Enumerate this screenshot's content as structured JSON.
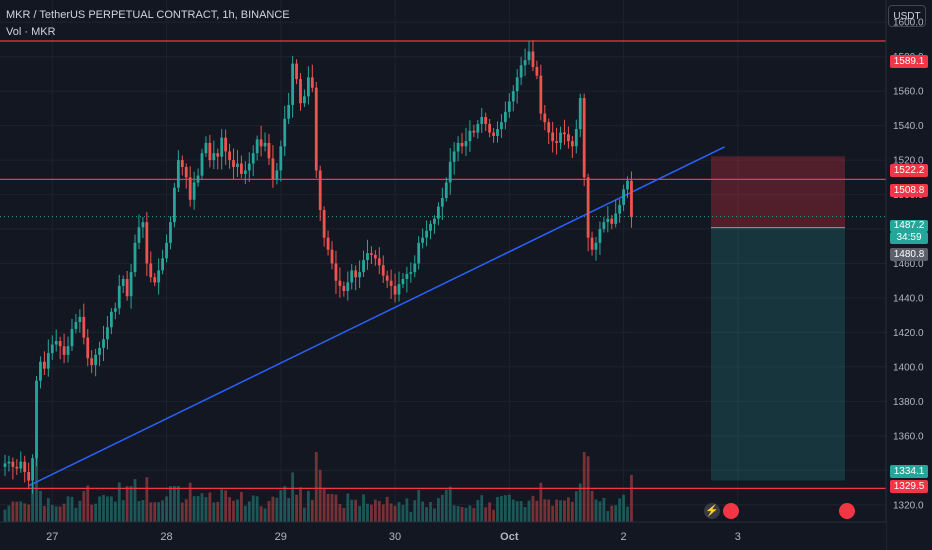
{
  "header": {
    "title": "MKR / TetherUS PERPETUAL CONTRACT, 1h, BINANCE",
    "volume_label": "Vol · MKR",
    "currency_button": "USDT"
  },
  "colors": {
    "background": "#131722",
    "up": "#26a69a",
    "down": "#ef5350",
    "hline": "#f23645",
    "trendline": "#2962ff",
    "grid": "#1e222d"
  },
  "price_labels": {
    "line_top": "1589.1",
    "short_stop": "1522.2",
    "line_mid": "1508.8",
    "last_price": "1487.2",
    "countdown": "34:59",
    "entry": "1480.8",
    "target": "1334.1",
    "line_bottom": "1329.5"
  },
  "chart_data": {
    "type": "candlestick",
    "title": "MKR / TetherUS PERPETUAL CONTRACT, 1h, BINANCE",
    "timeframe": "1h",
    "ylim": [
      1310,
      1610
    ],
    "y_ticks": [
      1320,
      1340,
      1360,
      1380,
      1400,
      1420,
      1440,
      1460,
      1480,
      1500,
      1520,
      1540,
      1560,
      1580,
      1600
    ],
    "x_ticks": [
      "27",
      "28",
      "29",
      "30",
      "Oct",
      "2",
      "3"
    ],
    "x_tick_candle_index": [
      12,
      41,
      70,
      99,
      128,
      157,
      186
    ],
    "last_price": 1487.2,
    "horizontal_lines": [
      1589.1,
      1508.8,
      1329.5
    ],
    "trendline": {
      "from": {
        "candle": 6,
        "price": 1331
      },
      "to": {
        "candle": 175,
        "price": 1523
      }
    },
    "short_position": {
      "entry": 1480.8,
      "stop": 1522.2,
      "target": 1334.1
    },
    "closes": [
      1344,
      1345,
      1342,
      1341,
      1345,
      1339,
      1334,
      1347,
      1392,
      1403,
      1399,
      1408,
      1413,
      1415,
      1412,
      1407,
      1412,
      1422,
      1426,
      1429,
      1417,
      1405,
      1401,
      1407,
      1411,
      1416,
      1423,
      1432,
      1434,
      1447,
      1451,
      1441,
      1455,
      1472,
      1481,
      1484,
      1460,
      1452,
      1449,
      1456,
      1463,
      1472,
      1484,
      1504,
      1520,
      1516,
      1510,
      1497,
      1507,
      1511,
      1524,
      1530,
      1520,
      1524,
      1522,
      1533,
      1525,
      1520,
      1516,
      1518,
      1512,
      1514,
      1518,
      1524,
      1532,
      1528,
      1530,
      1521,
      1509,
      1514,
      1528,
      1544,
      1552,
      1576,
      1567,
      1553,
      1557,
      1568,
      1562,
      1514,
      1491,
      1475,
      1468,
      1460,
      1450,
      1447,
      1444,
      1449,
      1456,
      1452,
      1455,
      1462,
      1466,
      1465,
      1463,
      1459,
      1453,
      1450,
      1447,
      1442,
      1448,
      1451,
      1454,
      1455,
      1460,
      1472,
      1475,
      1479,
      1483,
      1486,
      1493,
      1498,
      1507,
      1519,
      1525,
      1530,
      1528,
      1531,
      1537,
      1536,
      1541,
      1545,
      1541,
      1536,
      1534,
      1538,
      1542,
      1548,
      1554,
      1560,
      1568,
      1575,
      1578,
      1583,
      1574,
      1569,
      1547,
      1542,
      1536,
      1531,
      1530,
      1536,
      1535,
      1531,
      1528,
      1538,
      1556,
      1510,
      1475,
      1468,
      1472,
      1480,
      1484,
      1486,
      1483,
      1489,
      1494,
      1503,
      1508,
      1487
    ]
  }
}
